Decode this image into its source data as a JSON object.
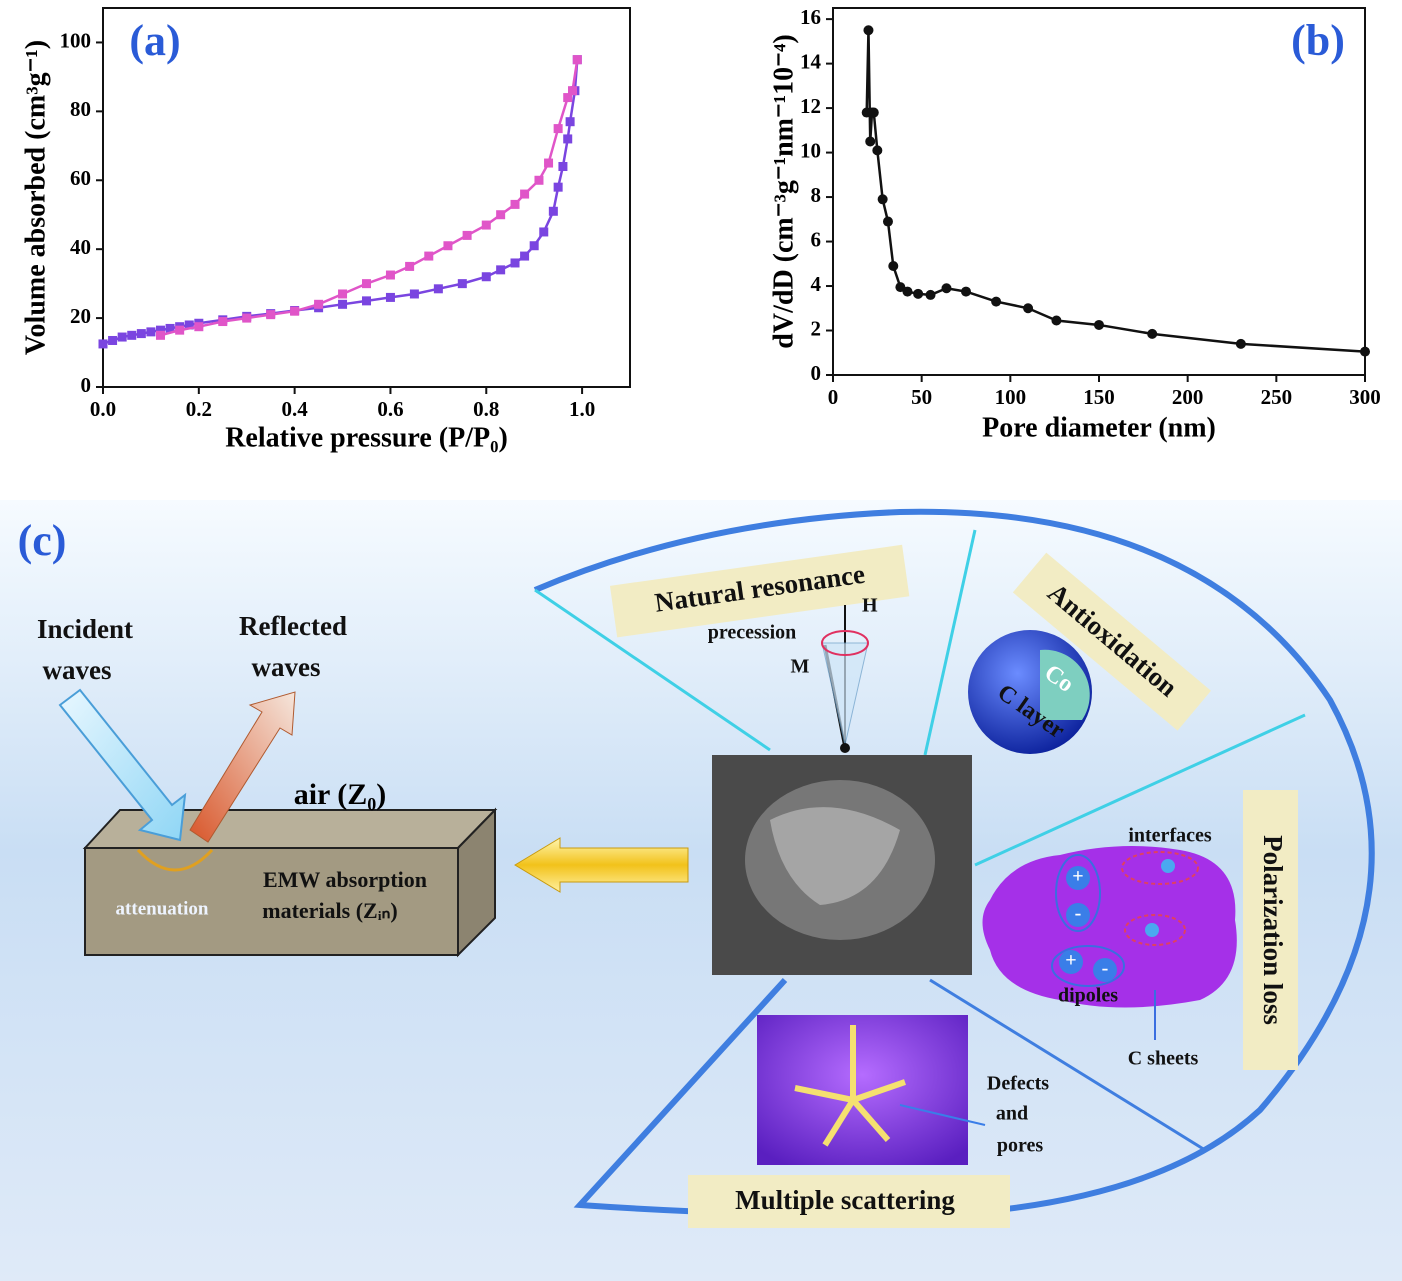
{
  "chart_data": [
    {
      "type": "line",
      "panel_label": "(a)",
      "x_label": "Relative pressure (P/P₀)",
      "y_label": "Volume absorbed (cm³g⁻¹)",
      "xlim": [
        0,
        1.1
      ],
      "xticks": [
        {
          "value": 0,
          "label": "0.0"
        },
        0.2,
        0.4,
        0.6,
        0.8,
        {
          "value": 1,
          "label": "1.0"
        }
      ],
      "ylim": [
        0,
        110
      ],
      "yticks": [
        0,
        20,
        40,
        60,
        80,
        100
      ],
      "marker": "square",
      "series": [
        {
          "color": "#7a45e0",
          "x": [
            0.0,
            0.02,
            0.04,
            0.06,
            0.08,
            0.1,
            0.12,
            0.14,
            0.16,
            0.18,
            0.2,
            0.25,
            0.3,
            0.35,
            0.4,
            0.45,
            0.5,
            0.55,
            0.6,
            0.65,
            0.7,
            0.75,
            0.8,
            0.83,
            0.86,
            0.88,
            0.9,
            0.92,
            0.94,
            0.95,
            0.96,
            0.97,
            0.975,
            0.985,
            0.99
          ],
          "values": [
            12.5,
            13.5,
            14.5,
            15,
            15.5,
            16,
            16.5,
            17,
            17.5,
            18,
            18.5,
            19.5,
            20.5,
            21.3,
            22.2,
            23,
            24,
            25,
            26,
            27,
            28.5,
            30,
            32,
            34,
            36,
            38,
            41,
            45,
            51,
            58,
            64,
            72,
            77,
            86,
            95
          ]
        },
        {
          "color": "#e055c8",
          "x": [
            0.12,
            0.16,
            0.2,
            0.25,
            0.3,
            0.35,
            0.4,
            0.45,
            0.5,
            0.55,
            0.6,
            0.64,
            0.68,
            0.72,
            0.76,
            0.8,
            0.83,
            0.86,
            0.88,
            0.91,
            0.93,
            0.95,
            0.97,
            0.98,
            0.99
          ],
          "values": [
            15,
            16.5,
            17.5,
            19,
            20,
            21,
            22,
            24,
            27,
            30,
            32.5,
            35,
            38,
            41,
            44,
            47,
            50,
            53,
            56,
            60,
            65,
            75,
            84,
            86,
            95
          ]
        }
      ]
    },
    {
      "type": "line",
      "panel_label": "(b)",
      "x_label": "Pore diameter (nm)",
      "y_label": "dV/dD (cm⁻³g⁻¹nm⁻¹10⁻⁴)",
      "xlim": [
        0,
        300
      ],
      "xticks": [
        0,
        50,
        100,
        150,
        200,
        250,
        300
      ],
      "ylim": [
        0,
        16.5
      ],
      "yticks": [
        0,
        2,
        4,
        6,
        8,
        10,
        12,
        14,
        16
      ],
      "marker": "circle",
      "series": [
        {
          "color": "#111111",
          "x": [
            19,
            20,
            21,
            22,
            23,
            25,
            28,
            31,
            34,
            38,
            42,
            48,
            55,
            64,
            75,
            92,
            110,
            126,
            150,
            180,
            230,
            300
          ],
          "values": [
            11.8,
            15.5,
            10.5,
            11.8,
            11.8,
            10.1,
            7.9,
            6.9,
            4.9,
            3.95,
            3.75,
            3.65,
            3.6,
            3.9,
            3.75,
            3.3,
            3.0,
            2.45,
            2.25,
            1.85,
            1.4,
            1.05
          ]
        }
      ]
    }
  ],
  "diagram": {
    "panel_label": "(c)",
    "incident": [
      "Incident",
      "waves"
    ],
    "reflected": [
      "Reflected",
      "waves"
    ],
    "air": "air (Z₀)",
    "material": [
      "EMW absorption",
      "materials (Zᵢₙ)"
    ],
    "attenuation": "attenuation",
    "natural_resonance": "Natural resonance",
    "H": "H",
    "precession": "precession",
    "M": "M",
    "antioxidation": "Antioxidation",
    "co": "Co",
    "c_layer": "C layer",
    "interfaces": "interfaces",
    "dipoles": "dipoles",
    "c_sheets": "C sheets",
    "polarization_loss": "Polarization loss",
    "defects": [
      "Defects",
      "and",
      "pores"
    ],
    "multiple_scattering": "Multiple scattering",
    "plus": "+",
    "minus": "-"
  }
}
